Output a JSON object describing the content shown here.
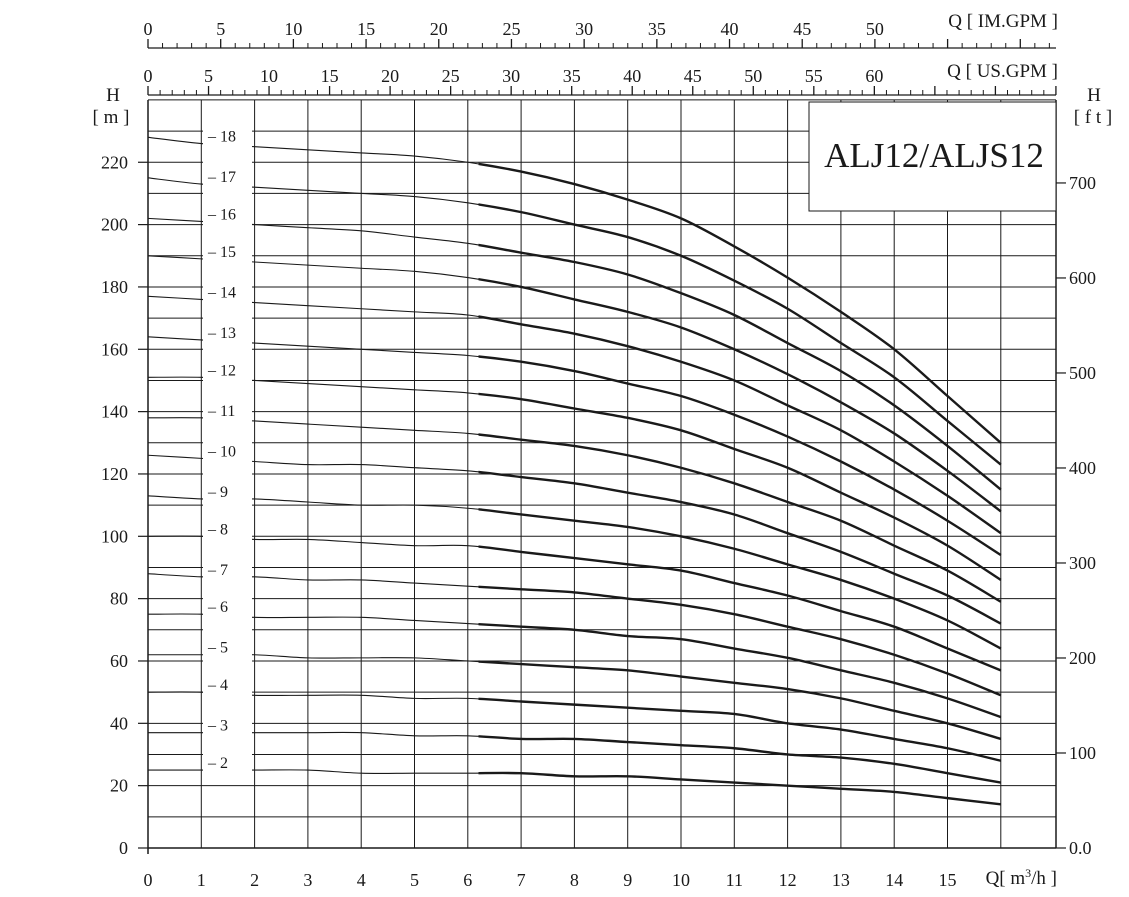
{
  "chart_data": {
    "type": "line",
    "title": "ALJ12/ALJS12",
    "x": [
      0,
      1,
      2,
      3,
      4,
      5,
      6,
      7,
      8,
      9,
      10,
      11,
      12,
      13,
      14,
      15,
      16
    ],
    "xlabel": "Q[ m³/h ]",
    "xlim": [
      0,
      16
    ],
    "x_ticks": [
      "0",
      "1",
      "2",
      "3",
      "4",
      "5",
      "6",
      "7",
      "8",
      "9",
      "10",
      "11",
      "12",
      "13",
      "14",
      "15"
    ],
    "ylabel_left": "H [ m ]",
    "ylim": [
      0,
      240
    ],
    "y_ticks_left": [
      "0",
      "20",
      "40",
      "60",
      "80",
      "100",
      "120",
      "140",
      "160",
      "180",
      "200",
      "220"
    ],
    "ylabel_right": "H [ f t ]",
    "y_ticks_right": [
      "0.0",
      "100",
      "200",
      "300",
      "400",
      "500",
      "600",
      "700"
    ],
    "secondary_x_axes": [
      {
        "label": "Q [ US.GPM ]",
        "ticks": [
          "0",
          "5",
          "10",
          "15",
          "20",
          "25",
          "30",
          "35",
          "40",
          "45",
          "50",
          "55",
          "60"
        ],
        "ticks_per_m3h": 4.4029,
        "minor_step": 1
      },
      {
        "label": "Q [ IM.GPM ]",
        "ticks": [
          "0",
          "5",
          "10",
          "15",
          "20",
          "25",
          "30",
          "35",
          "40",
          "45",
          "50"
        ],
        "ticks_per_m3h": 3.6662,
        "minor_step": 1
      }
    ],
    "grid": true,
    "series": [
      {
        "name": "18",
        "values": [
          228,
          226,
          225,
          224,
          223,
          222,
          220,
          217,
          213,
          208,
          202,
          193,
          183,
          172,
          160,
          145,
          130
        ]
      },
      {
        "name": "17",
        "values": [
          215,
          213,
          212,
          211,
          210,
          209,
          207,
          204,
          200,
          196,
          190,
          182,
          173,
          162,
          151,
          137,
          123
        ]
      },
      {
        "name": "16",
        "values": [
          202,
          201,
          200,
          199,
          198,
          196,
          194,
          191,
          188,
          184,
          178,
          171,
          162,
          153,
          142,
          129,
          115
        ]
      },
      {
        "name": "15",
        "values": [
          190,
          189,
          188,
          187,
          186,
          185,
          183,
          180,
          176,
          172,
          167,
          160,
          152,
          143,
          133,
          121,
          108
        ]
      },
      {
        "name": "14",
        "values": [
          177,
          176,
          175,
          174,
          173,
          172,
          171,
          168,
          165,
          161,
          156,
          150,
          142,
          134,
          124,
          113,
          101
        ]
      },
      {
        "name": "13",
        "values": [
          164,
          163,
          162,
          161,
          160,
          159,
          158,
          156,
          153,
          149,
          145,
          139,
          132,
          124,
          115,
          105,
          94
        ]
      },
      {
        "name": "12",
        "values": [
          151,
          151,
          150,
          149,
          148,
          147,
          146,
          144,
          141,
          138,
          134,
          128,
          122,
          114,
          106,
          97,
          86
        ]
      },
      {
        "name": "11",
        "values": [
          138,
          138,
          137,
          136,
          135,
          134,
          133,
          131,
          129,
          126,
          122,
          117,
          111,
          105,
          97,
          89,
          79
        ]
      },
      {
        "name": "10",
        "values": [
          126,
          125,
          124,
          123,
          123,
          122,
          121,
          119,
          117,
          114,
          111,
          107,
          101,
          95,
          88,
          81,
          72
        ]
      },
      {
        "name": "9",
        "values": [
          113,
          112,
          112,
          111,
          110,
          110,
          109,
          107,
          105,
          103,
          100,
          96,
          91,
          86,
          80,
          73,
          64
        ]
      },
      {
        "name": "8",
        "values": [
          100,
          100,
          99,
          99,
          98,
          97,
          97,
          95,
          93,
          91,
          89,
          85,
          81,
          76,
          71,
          64,
          57
        ]
      },
      {
        "name": "7",
        "values": [
          88,
          87,
          87,
          86,
          86,
          85,
          84,
          83,
          82,
          80,
          78,
          75,
          71,
          67,
          62,
          56,
          49
        ]
      },
      {
        "name": "6",
        "values": [
          75,
          75,
          74,
          74,
          74,
          73,
          72,
          71,
          70,
          68,
          67,
          64,
          61,
          57,
          53,
          48,
          42
        ]
      },
      {
        "name": "5",
        "values": [
          62,
          62,
          62,
          61,
          61,
          61,
          60,
          59,
          58,
          57,
          55,
          53,
          51,
          48,
          44,
          40,
          35
        ]
      },
      {
        "name": "4",
        "values": [
          50,
          50,
          49,
          49,
          49,
          48,
          48,
          47,
          46,
          45,
          44,
          43,
          40,
          38,
          35,
          32,
          28
        ]
      },
      {
        "name": "3",
        "values": [
          37,
          37,
          37,
          37,
          37,
          36,
          36,
          35,
          35,
          34,
          33,
          32,
          30,
          29,
          27,
          24,
          21
        ]
      },
      {
        "name": "2",
        "values": [
          25,
          25,
          25,
          25,
          24,
          24,
          24,
          24,
          23,
          23,
          22,
          21,
          20,
          19,
          18,
          16,
          14
        ]
      }
    ],
    "ft_per_m": 3.28084
  }
}
